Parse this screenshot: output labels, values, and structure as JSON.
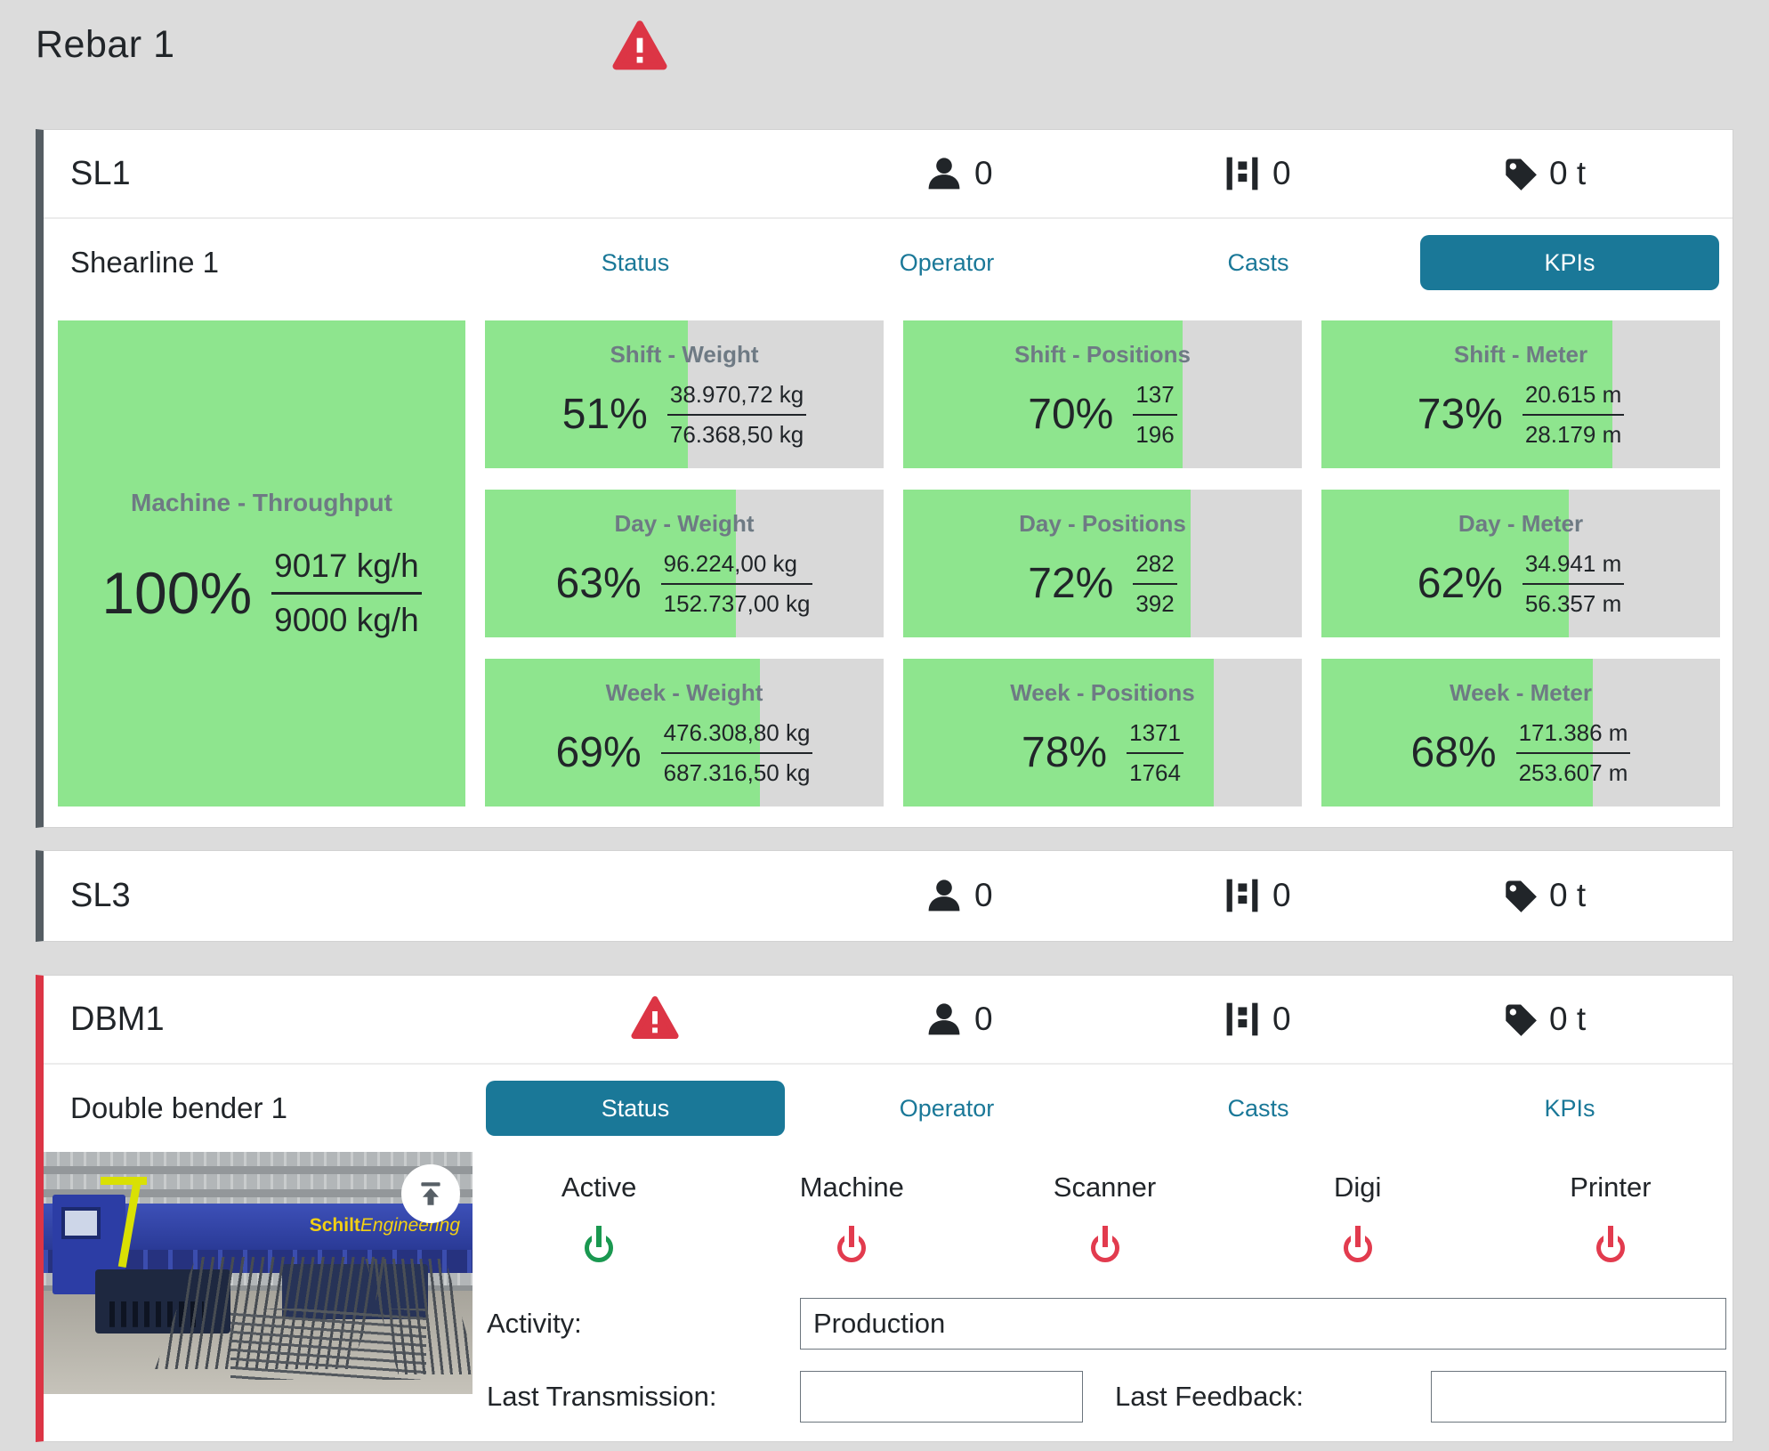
{
  "colors": {
    "accent_teal": "#1a7898",
    "kpi_green": "#8ee58e",
    "tile_gray": "#d9d9d9",
    "warning_red": "#dc3545",
    "power_on_green": "#1a9850",
    "power_off_red": "#e23b4e",
    "rail_dark": "#555d63",
    "rail_red": "#dc3545"
  },
  "icons": {
    "warning": "warning-triangle-icon",
    "operator": "person-icon",
    "casts": "cast-distribution-icon",
    "weight": "tag-icon",
    "power": "power-icon",
    "upload": "upload-arrow-icon"
  },
  "header": {
    "title": "Rebar 1"
  },
  "sl1": {
    "title": "SL1",
    "subtitle": "Shearline 1",
    "operator_count": "0",
    "cast_count": "0",
    "weight_count": "0 t",
    "tabs": {
      "status": "Status",
      "operator": "Operator",
      "casts": "Casts",
      "kpis": "KPIs"
    },
    "active_tab": "KPIs",
    "throughput": {
      "label": "Machine - Throughput",
      "pct": 100,
      "pct_text": "100%",
      "numerator": "9017 kg/h",
      "denominator": "9000 kg/h"
    },
    "kpis": [
      {
        "label": "Shift - Weight",
        "pct": 51,
        "pct_text": "51%",
        "numerator": "38.970,72 kg",
        "denominator": "76.368,50 kg"
      },
      {
        "label": "Shift - Positions",
        "pct": 70,
        "pct_text": "70%",
        "numerator": "137",
        "denominator": "196"
      },
      {
        "label": "Shift - Meter",
        "pct": 73,
        "pct_text": "73%",
        "numerator": "20.615 m",
        "denominator": "28.179 m"
      },
      {
        "label": "Day - Weight",
        "pct": 63,
        "pct_text": "63%",
        "numerator": "96.224,00 kg",
        "denominator": "152.737,00 kg"
      },
      {
        "label": "Day - Positions",
        "pct": 72,
        "pct_text": "72%",
        "numerator": "282",
        "denominator": "392"
      },
      {
        "label": "Day - Meter",
        "pct": 62,
        "pct_text": "62%",
        "numerator": "34.941 m",
        "denominator": "56.357 m"
      },
      {
        "label": "Week - Weight",
        "pct": 69,
        "pct_text": "69%",
        "numerator": "476.308,80 kg",
        "denominator": "687.316,50 kg"
      },
      {
        "label": "Week - Positions",
        "pct": 78,
        "pct_text": "78%",
        "numerator": "1371",
        "denominator": "1764"
      },
      {
        "label": "Week - Meter",
        "pct": 68,
        "pct_text": "68%",
        "numerator": "171.386 m",
        "denominator": "253.607 m"
      }
    ]
  },
  "sl3": {
    "title": "SL3",
    "operator_count": "0",
    "cast_count": "0",
    "weight_count": "0 t"
  },
  "dbm1": {
    "title": "DBM1",
    "subtitle": "Double bender 1",
    "operator_count": "0",
    "cast_count": "0",
    "weight_count": "0 t",
    "tabs": {
      "status": "Status",
      "operator": "Operator",
      "casts": "Casts",
      "kpis": "KPIs"
    },
    "active_tab": "Status",
    "photo": {
      "brand_bold": "Schilt",
      "brand_italic": "Engineering"
    },
    "status": {
      "indicators": [
        {
          "label": "Active",
          "state": "on"
        },
        {
          "label": "Machine",
          "state": "off"
        },
        {
          "label": "Scanner",
          "state": "off"
        },
        {
          "label": "Digi",
          "state": "off"
        },
        {
          "label": "Printer",
          "state": "off"
        }
      ],
      "activity_label": "Activity:",
      "activity_value": "Production",
      "last_transmission_label": "Last Transmission:",
      "last_transmission_value": "",
      "last_feedback_label": "Last Feedback:",
      "last_feedback_value": ""
    }
  }
}
